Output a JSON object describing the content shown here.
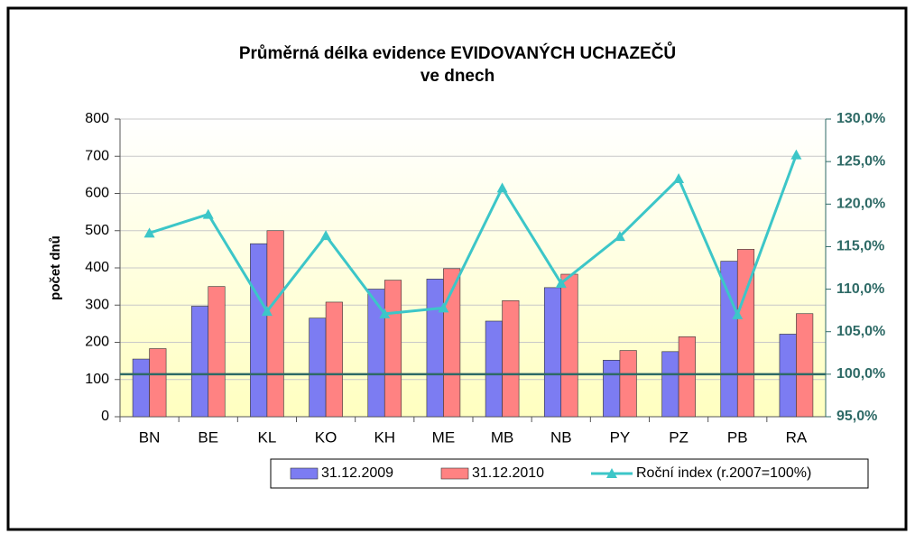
{
  "chart_data": {
    "type": "bar_line",
    "title": [
      "Průměrná délka evidence EVIDOVANÝCH UCHAZEČŮ",
      "ve dnech"
    ],
    "y_label": "počet dnů",
    "categories": [
      "BN",
      "BE",
      "KL",
      "KO",
      "KH",
      "ME",
      "MB",
      "NB",
      "PY",
      "PZ",
      "PB",
      "RA"
    ],
    "series": [
      {
        "name": "31.12.2009",
        "type": "bar",
        "color": "#7c7cf2",
        "values": [
          155,
          297,
          465,
          265,
          343,
          370,
          257,
          347,
          152,
          175,
          418,
          222
        ]
      },
      {
        "name": "31.12.2010",
        "type": "bar",
        "color": "#ff8282",
        "values": [
          183,
          350,
          500,
          308,
          367,
          398,
          312,
          383,
          178,
          215,
          450,
          277
        ]
      },
      {
        "name": "Roční index (r.2007=100%)",
        "type": "line",
        "axis": "y2",
        "color": "#3cc6c8",
        "values": [
          116.6,
          118.8,
          107.4,
          116.3,
          107.1,
          107.8,
          121.9,
          110.7,
          116.2,
          123.0,
          107.0,
          125.8
        ]
      }
    ],
    "ylim": [
      0,
      800
    ],
    "yticks": [
      0,
      100,
      200,
      300,
      400,
      500,
      600,
      700,
      800
    ],
    "y2lim": [
      95,
      130
    ],
    "y2ticks": [
      {
        "value": 95,
        "label": "95,0%"
      },
      {
        "value": 100,
        "label": "100,0%"
      },
      {
        "value": 105,
        "label": "105,0%"
      },
      {
        "value": 110,
        "label": "110,0%"
      },
      {
        "value": 115,
        "label": "115,0%"
      },
      {
        "value": 120,
        "label": "120,0%"
      },
      {
        "value": 125,
        "label": "125,0%"
      },
      {
        "value": 130,
        "label": "130,0%"
      }
    ],
    "y2_reference": 100,
    "reference_color": "#2e6a66",
    "grid": true,
    "legend": "bottom"
  }
}
